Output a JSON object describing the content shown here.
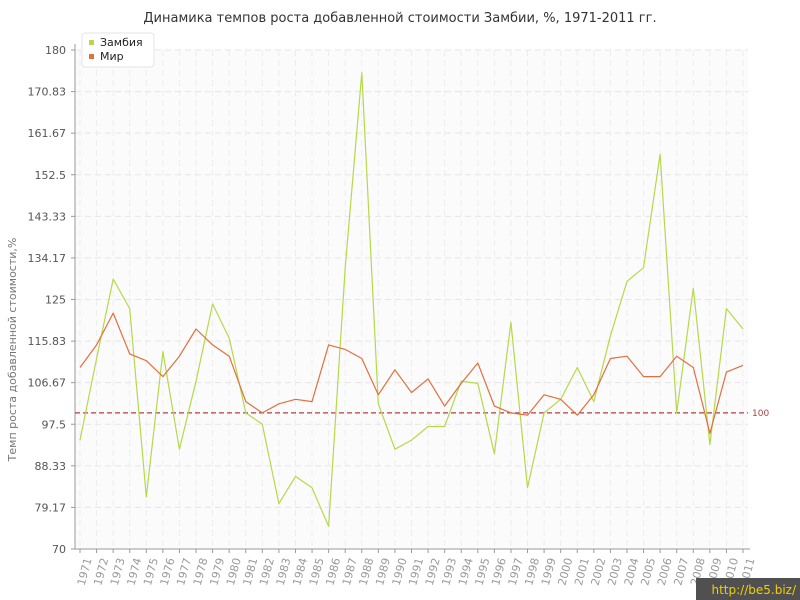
{
  "chart_data": {
    "type": "line",
    "title": "Динамика темпов роста добавленной стоимости Замбии, %, 1971-2011 гг.",
    "xlabel": "",
    "ylabel": "Темп роста добавленной стоимости,%",
    "ylim": [
      70,
      180
    ],
    "yticks": [
      "70",
      "79.17",
      "88.33",
      "97.5",
      "106.67",
      "115.83",
      "125",
      "134.17",
      "143.33",
      "152.5",
      "161.67",
      "170.83",
      "180"
    ],
    "categories": [
      "1971",
      "1972",
      "1973",
      "1974",
      "1975",
      "1976",
      "1977",
      "1978",
      "1979",
      "1980",
      "1981",
      "1982",
      "1983",
      "1984",
      "1985",
      "1986",
      "1987",
      "1988",
      "1989",
      "1990",
      "1991",
      "1992",
      "1993",
      "1994",
      "1995",
      "1996",
      "1997",
      "1998",
      "1999",
      "2000",
      "2001",
      "2002",
      "2003",
      "2004",
      "2005",
      "2006",
      "2007",
      "2008",
      "2009",
      "2010",
      "2011"
    ],
    "series": [
      {
        "name": "Замбия",
        "color": "#b5d94a",
        "values": [
          94.0,
          112.0,
          129.5,
          123.0,
          81.5,
          113.5,
          92.0,
          107.0,
          124.0,
          116.5,
          100.0,
          97.5,
          80.0,
          86.0,
          83.5,
          75.0,
          132.0,
          175.0,
          102.0,
          92.0,
          94.0,
          97.0,
          97.0,
          107.0,
          106.5,
          91.0,
          120.0,
          83.5,
          100.0,
          103.0,
          110.0,
          102.5,
          117.0,
          129.0,
          132.0,
          157.0,
          100.0,
          127.5,
          93.0,
          123.0,
          118.5
        ]
      },
      {
        "name": "Мир",
        "color": "#e07040",
        "values": [
          110.0,
          115.0,
          122.0,
          113.0,
          111.5,
          108.0,
          112.5,
          118.5,
          115.0,
          112.5,
          102.5,
          100.0,
          102.0,
          103.0,
          102.5,
          115.0,
          114.0,
          112.0,
          104.0,
          109.5,
          104.5,
          107.5,
          101.5,
          106.5,
          111.0,
          101.5,
          100.0,
          99.5,
          104.0,
          103.0,
          99.5,
          104.0,
          112.0,
          112.5,
          108.0,
          108.0,
          112.5,
          110.0,
          95.5,
          109.0,
          110.5
        ]
      }
    ],
    "reference_line": {
      "value": 100,
      "label": "100",
      "color": "#b04040"
    },
    "grid": true,
    "legend_position": "top-left"
  },
  "watermark": "http://be5.biz/"
}
